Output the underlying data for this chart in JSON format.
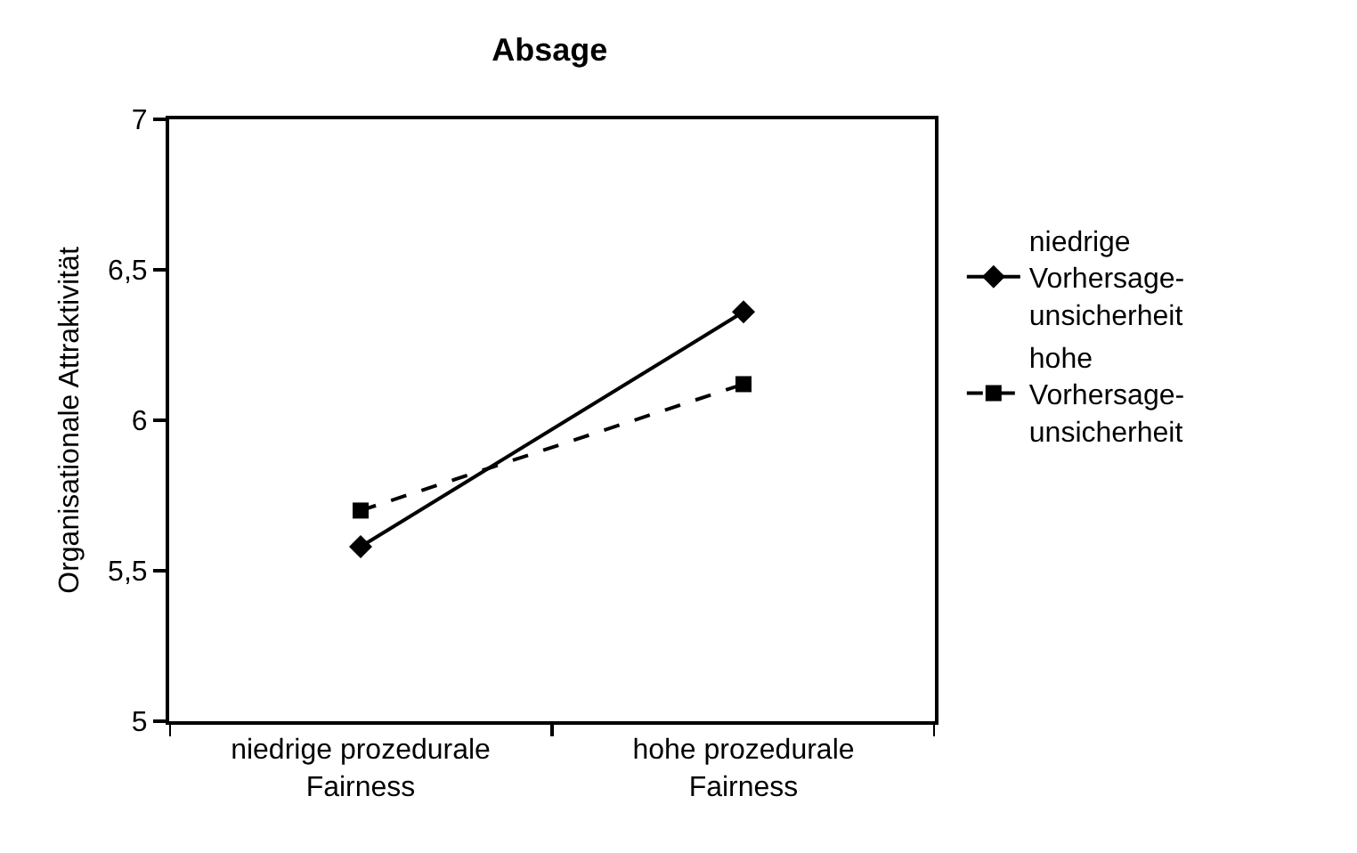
{
  "chart_data": {
    "type": "line",
    "title": "Absage",
    "ylabel": "Organisationale Attraktivität",
    "categories": [
      "niedrige prozedurale Fairness",
      "hohe prozedurale Fairness"
    ],
    "series": [
      {
        "name": "niedrige Vorhersage-unsicherheit",
        "color": "#000000",
        "values": [
          5.58,
          6.36
        ],
        "marker": "diamond",
        "line_style": "solid"
      },
      {
        "name": "hohe Vorhersage-unsicherheit",
        "color": "#000000",
        "values": [
          5.7,
          6.12
        ],
        "marker": "square",
        "line_style": "dashed"
      }
    ],
    "ylim": [
      5,
      7
    ],
    "yticks": [
      5,
      {
        "value": 5.5,
        "label": "5,5"
      },
      6,
      {
        "value": 6.5,
        "label": "6,5"
      },
      7
    ],
    "grid": false,
    "legend": "right"
  }
}
